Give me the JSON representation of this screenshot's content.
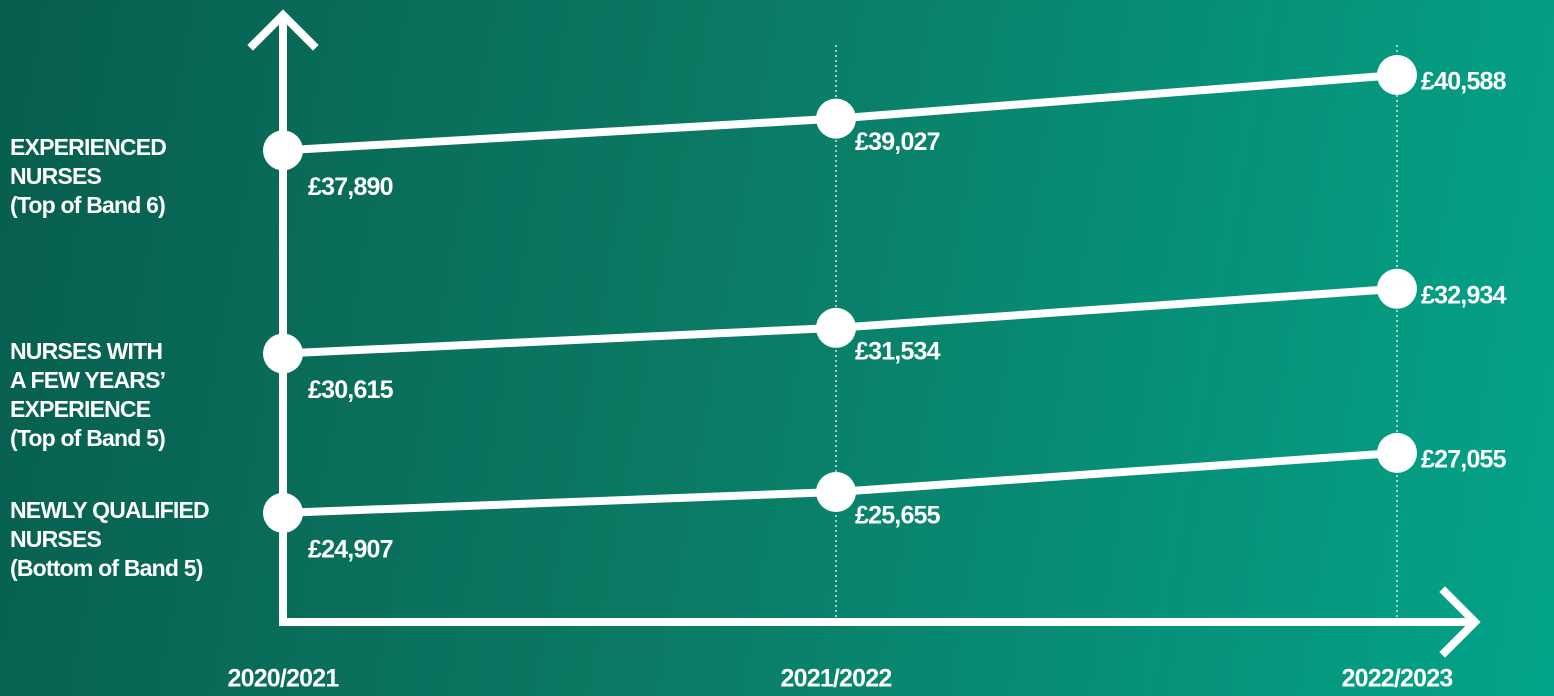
{
  "chart_data": {
    "type": "line",
    "categories": [
      "2020/2021",
      "2021/2022",
      "2022/2023"
    ],
    "series": [
      {
        "name": "EXPERIENCED\nNURSES\n(Top of Band 6)",
        "color": "#ffffff",
        "values": [
          37890,
          39027,
          40588
        ],
        "value_labels": [
          "£37,890",
          "£39,027",
          "£40,588"
        ]
      },
      {
        "name": "NURSES WITH\nA FEW YEARS’\nEXPERIENCE\n(Top of Band 5)",
        "color": "#ffffff",
        "values": [
          30615,
          31534,
          32934
        ],
        "value_labels": [
          "£30,615",
          "£31,534",
          "£32,934"
        ]
      },
      {
        "name": "NEWLY QUALIFIED\nNURSES\n(Bottom of Band 5)",
        "color": "#ffffff",
        "values": [
          24907,
          25655,
          27055
        ],
        "value_labels": [
          "£24,907",
          "£25,655",
          "£27,055"
        ]
      }
    ],
    "ylim": [
      21000,
      42200
    ]
  }
}
